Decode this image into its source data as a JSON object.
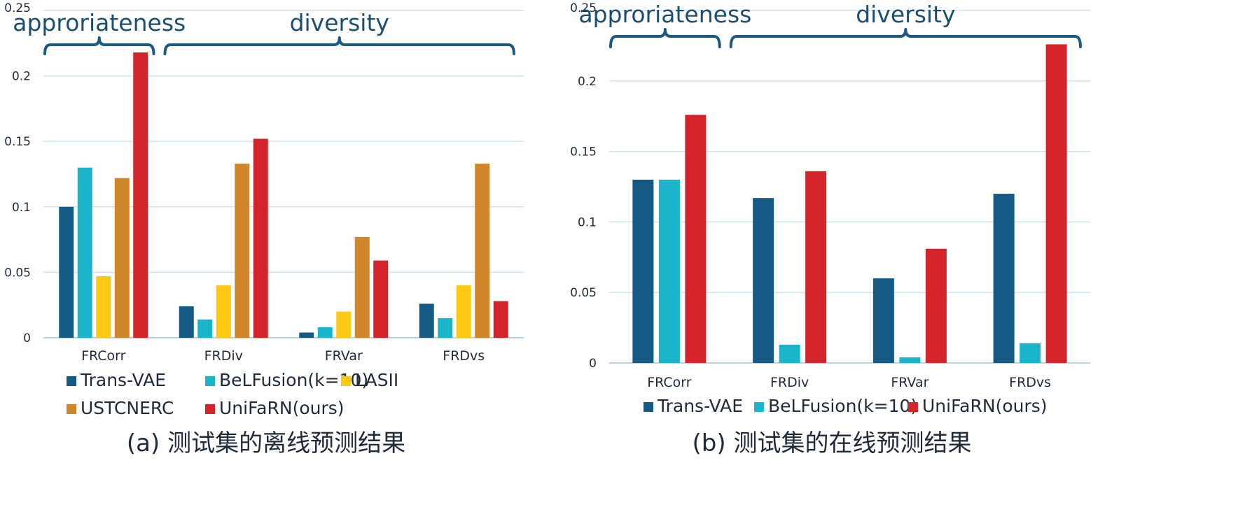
{
  "colors": {
    "Trans-VAE": "#155985",
    "BeLFusion(k=10)": "#1ab4cb",
    "LASII": "#fdc915",
    "USTCNERC": "#d0862b",
    "UniFaRN(ours)": "#d2242a"
  },
  "chart_data": [
    {
      "type": "bar",
      "caption": "(a) 测试集的离线预测结果",
      "categories": [
        "FRCorr",
        "FRDiv",
        "FRVar",
        "FRDvs"
      ],
      "ylim": [
        0,
        0.25
      ],
      "yticks": [
        "0",
        "0.05",
        "0.1",
        "0.15",
        "0.2",
        "0.25"
      ],
      "grid": true,
      "legend_position": "bottom",
      "series": [
        {
          "name": "Trans-VAE",
          "values": [
            0.1,
            0.024,
            0.004,
            0.026
          ]
        },
        {
          "name": "BeLFusion(k=10)",
          "values": [
            0.13,
            0.014,
            0.008,
            0.015
          ]
        },
        {
          "name": "LASII",
          "values": [
            0.047,
            0.04,
            0.02,
            0.04
          ]
        },
        {
          "name": "USTCNERC",
          "values": [
            0.122,
            0.133,
            0.077,
            0.133
          ]
        },
        {
          "name": "UniFaRN(ours)",
          "values": [
            0.218,
            0.152,
            0.059,
            0.028
          ]
        }
      ],
      "annotations": [
        {
          "text": "approriateness",
          "categories": [
            "FRCorr"
          ]
        },
        {
          "text": "diversity",
          "categories": [
            "FRDiv",
            "FRVar",
            "FRDvs"
          ]
        }
      ]
    },
    {
      "type": "bar",
      "caption": "(b) 测试集的在线预测结果",
      "categories": [
        "FRCorr",
        "FRDiv",
        "FRVar",
        "FRDvs"
      ],
      "ylim": [
        0,
        0.25
      ],
      "yticks": [
        "0",
        "0.05",
        "0.1",
        "0.15",
        "0.2",
        "0.25"
      ],
      "grid": true,
      "legend_position": "bottom",
      "series": [
        {
          "name": "Trans-VAE",
          "values": [
            0.13,
            0.117,
            0.06,
            0.12
          ]
        },
        {
          "name": "BeLFusion(k=10)",
          "values": [
            0.13,
            0.013,
            0.004,
            0.014
          ]
        },
        {
          "name": "UniFaRN(ours)",
          "values": [
            0.176,
            0.136,
            0.081,
            0.226
          ]
        }
      ],
      "annotations": [
        {
          "text": "approriateness",
          "categories": [
            "FRCorr"
          ]
        },
        {
          "text": "diversity",
          "categories": [
            "FRDiv",
            "FRVar",
            "FRDvs"
          ]
        }
      ]
    }
  ]
}
